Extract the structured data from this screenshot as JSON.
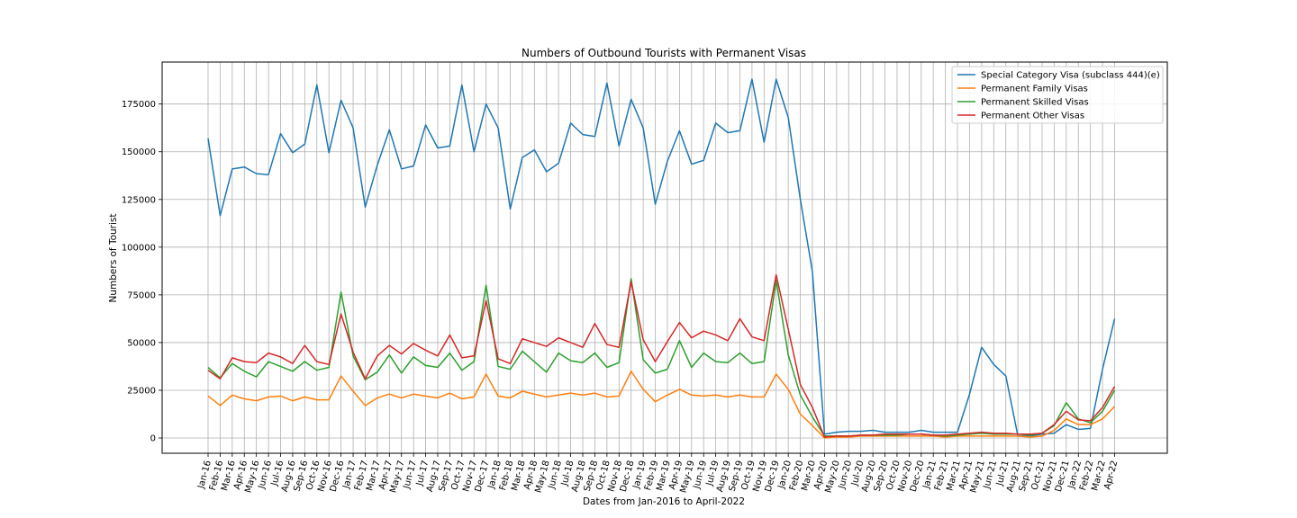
{
  "chart_data": {
    "type": "line",
    "title": "Numbers of Outbound Tourists with Permanent Visas",
    "xlabel": "Dates from Jan-2016 to April-2022",
    "ylabel": "Numbers of Tourist",
    "ylim": [
      -8000,
      197000
    ],
    "yticks": [
      0,
      25000,
      50000,
      75000,
      100000,
      125000,
      150000,
      175000
    ],
    "grid": true,
    "legend_position": "top-right",
    "x": [
      "Jan-16",
      "Feb-16",
      "Mar-16",
      "Apr-16",
      "May-16",
      "Jun-16",
      "Jul-16",
      "Aug-16",
      "Sep-16",
      "Oct-16",
      "Nov-16",
      "Dec-16",
      "Jan-17",
      "Feb-17",
      "Mar-17",
      "Apr-17",
      "May-17",
      "Jun-17",
      "Jul-17",
      "Aug-17",
      "Sep-17",
      "Oct-17",
      "Nov-17",
      "Dec-17",
      "Jan-18",
      "Feb-18",
      "Mar-18",
      "Apr-18",
      "May-18",
      "Jun-18",
      "Jul-18",
      "Aug-18",
      "Sep-18",
      "Oct-18",
      "Nov-18",
      "Dec-18",
      "Jan-19",
      "Feb-19",
      "Mar-19",
      "Apr-19",
      "May-19",
      "Jun-19",
      "Jul-19",
      "Aug-19",
      "Sep-19",
      "Oct-19",
      "Nov-19",
      "Dec-19",
      "Jan-20",
      "Feb-20",
      "Mar-20",
      "Apr-20",
      "May-20",
      "Jun-20",
      "Jul-20",
      "Aug-20",
      "Sep-20",
      "Oct-20",
      "Nov-20",
      "Dec-20",
      "Jan-21",
      "Feb-21",
      "Mar-21",
      "Apr-21",
      "May-21",
      "Jun-21",
      "Jul-21",
      "Aug-21",
      "Sep-21",
      "Oct-21",
      "Nov-21",
      "Dec-21",
      "Jan-22",
      "Feb-22",
      "Mar-22",
      "Apr-22"
    ],
    "series": [
      {
        "name": "Special Category Visa (subclass 444)(e)",
        "color": "#1f77b4",
        "values": [
          157000,
          116500,
          141000,
          142000,
          138500,
          138000,
          159500,
          149500,
          154000,
          185000,
          149500,
          177000,
          162500,
          121000,
          143000,
          161500,
          141000,
          142500,
          164000,
          152000,
          153000,
          185000,
          150000,
          175000,
          162500,
          120000,
          147000,
          151000,
          139500,
          144000,
          165000,
          159000,
          158000,
          186000,
          153000,
          177500,
          162500,
          122500,
          145000,
          161000,
          143500,
          145500,
          165000,
          160000,
          161000,
          188000,
          155000,
          188000,
          168000,
          125000,
          87000,
          2000,
          3000,
          3500,
          3500,
          4000,
          3000,
          3000,
          3000,
          4000,
          3000,
          3000,
          3000,
          23000,
          47500,
          38500,
          32500,
          1000,
          1000,
          2000,
          2500,
          7000,
          4500,
          5000,
          36000,
          62500
        ]
      },
      {
        "name": "Permanent Family Visas",
        "color": "#ff7f0e",
        "values": [
          22000,
          17000,
          22500,
          20500,
          19500,
          21500,
          22000,
          19500,
          21500,
          20000,
          20000,
          32500,
          24500,
          17000,
          21000,
          23000,
          21000,
          23000,
          22000,
          21000,
          23500,
          20500,
          21500,
          33500,
          22000,
          21000,
          24500,
          23000,
          21500,
          22500,
          23500,
          22500,
          23500,
          21500,
          22000,
          35000,
          25500,
          19000,
          22500,
          25500,
          22500,
          22000,
          22500,
          21500,
          22500,
          21500,
          21500,
          33500,
          25500,
          12500,
          6500,
          0,
          500,
          500,
          1000,
          1000,
          1000,
          1000,
          1000,
          1000,
          1000,
          500,
          1000,
          1000,
          1000,
          1000,
          1000,
          1000,
          500,
          1000,
          4000,
          10000,
          7000,
          7000,
          10000,
          16500
        ]
      },
      {
        "name": "Permanent Skilled Visas",
        "color": "#2ca02c",
        "values": [
          37000,
          31500,
          39000,
          35000,
          32000,
          40000,
          37500,
          35000,
          40000,
          35500,
          37000,
          76500,
          43000,
          30500,
          34500,
          43500,
          34000,
          42500,
          38000,
          37000,
          44500,
          35500,
          40000,
          80000,
          37500,
          36000,
          45500,
          40000,
          34500,
          44500,
          40500,
          39500,
          44500,
          37000,
          39500,
          83500,
          41000,
          34000,
          36000,
          51000,
          37000,
          44500,
          40000,
          39500,
          44500,
          39000,
          40000,
          82500,
          43500,
          22500,
          11000,
          1000,
          1000,
          1000,
          1500,
          1500,
          1500,
          1500,
          2000,
          2000,
          1500,
          1000,
          1500,
          2000,
          2500,
          2000,
          2000,
          2000,
          1500,
          2500,
          6500,
          18500,
          10000,
          8000,
          14000,
          25000
        ]
      },
      {
        "name": "Permanent Other Visas",
        "color": "#d62728",
        "values": [
          35500,
          31000,
          42000,
          40000,
          39500,
          44500,
          42500,
          39000,
          48500,
          40000,
          38500,
          65000,
          45000,
          31000,
          43000,
          48500,
          44000,
          49500,
          46000,
          43000,
          54000,
          42000,
          43000,
          72000,
          41500,
          39000,
          52000,
          50000,
          48000,
          52500,
          50000,
          47500,
          60000,
          49000,
          47500,
          82000,
          51500,
          40000,
          50500,
          60500,
          52500,
          56000,
          54000,
          51000,
          62500,
          53000,
          51000,
          85500,
          57000,
          28000,
          16000,
          500,
          1000,
          1000,
          1500,
          1500,
          2000,
          2000,
          2000,
          2000,
          1500,
          1500,
          2000,
          2500,
          3000,
          2500,
          2500,
          2000,
          2000,
          2500,
          7000,
          14000,
          9500,
          9000,
          16000,
          27000
        ]
      }
    ]
  }
}
